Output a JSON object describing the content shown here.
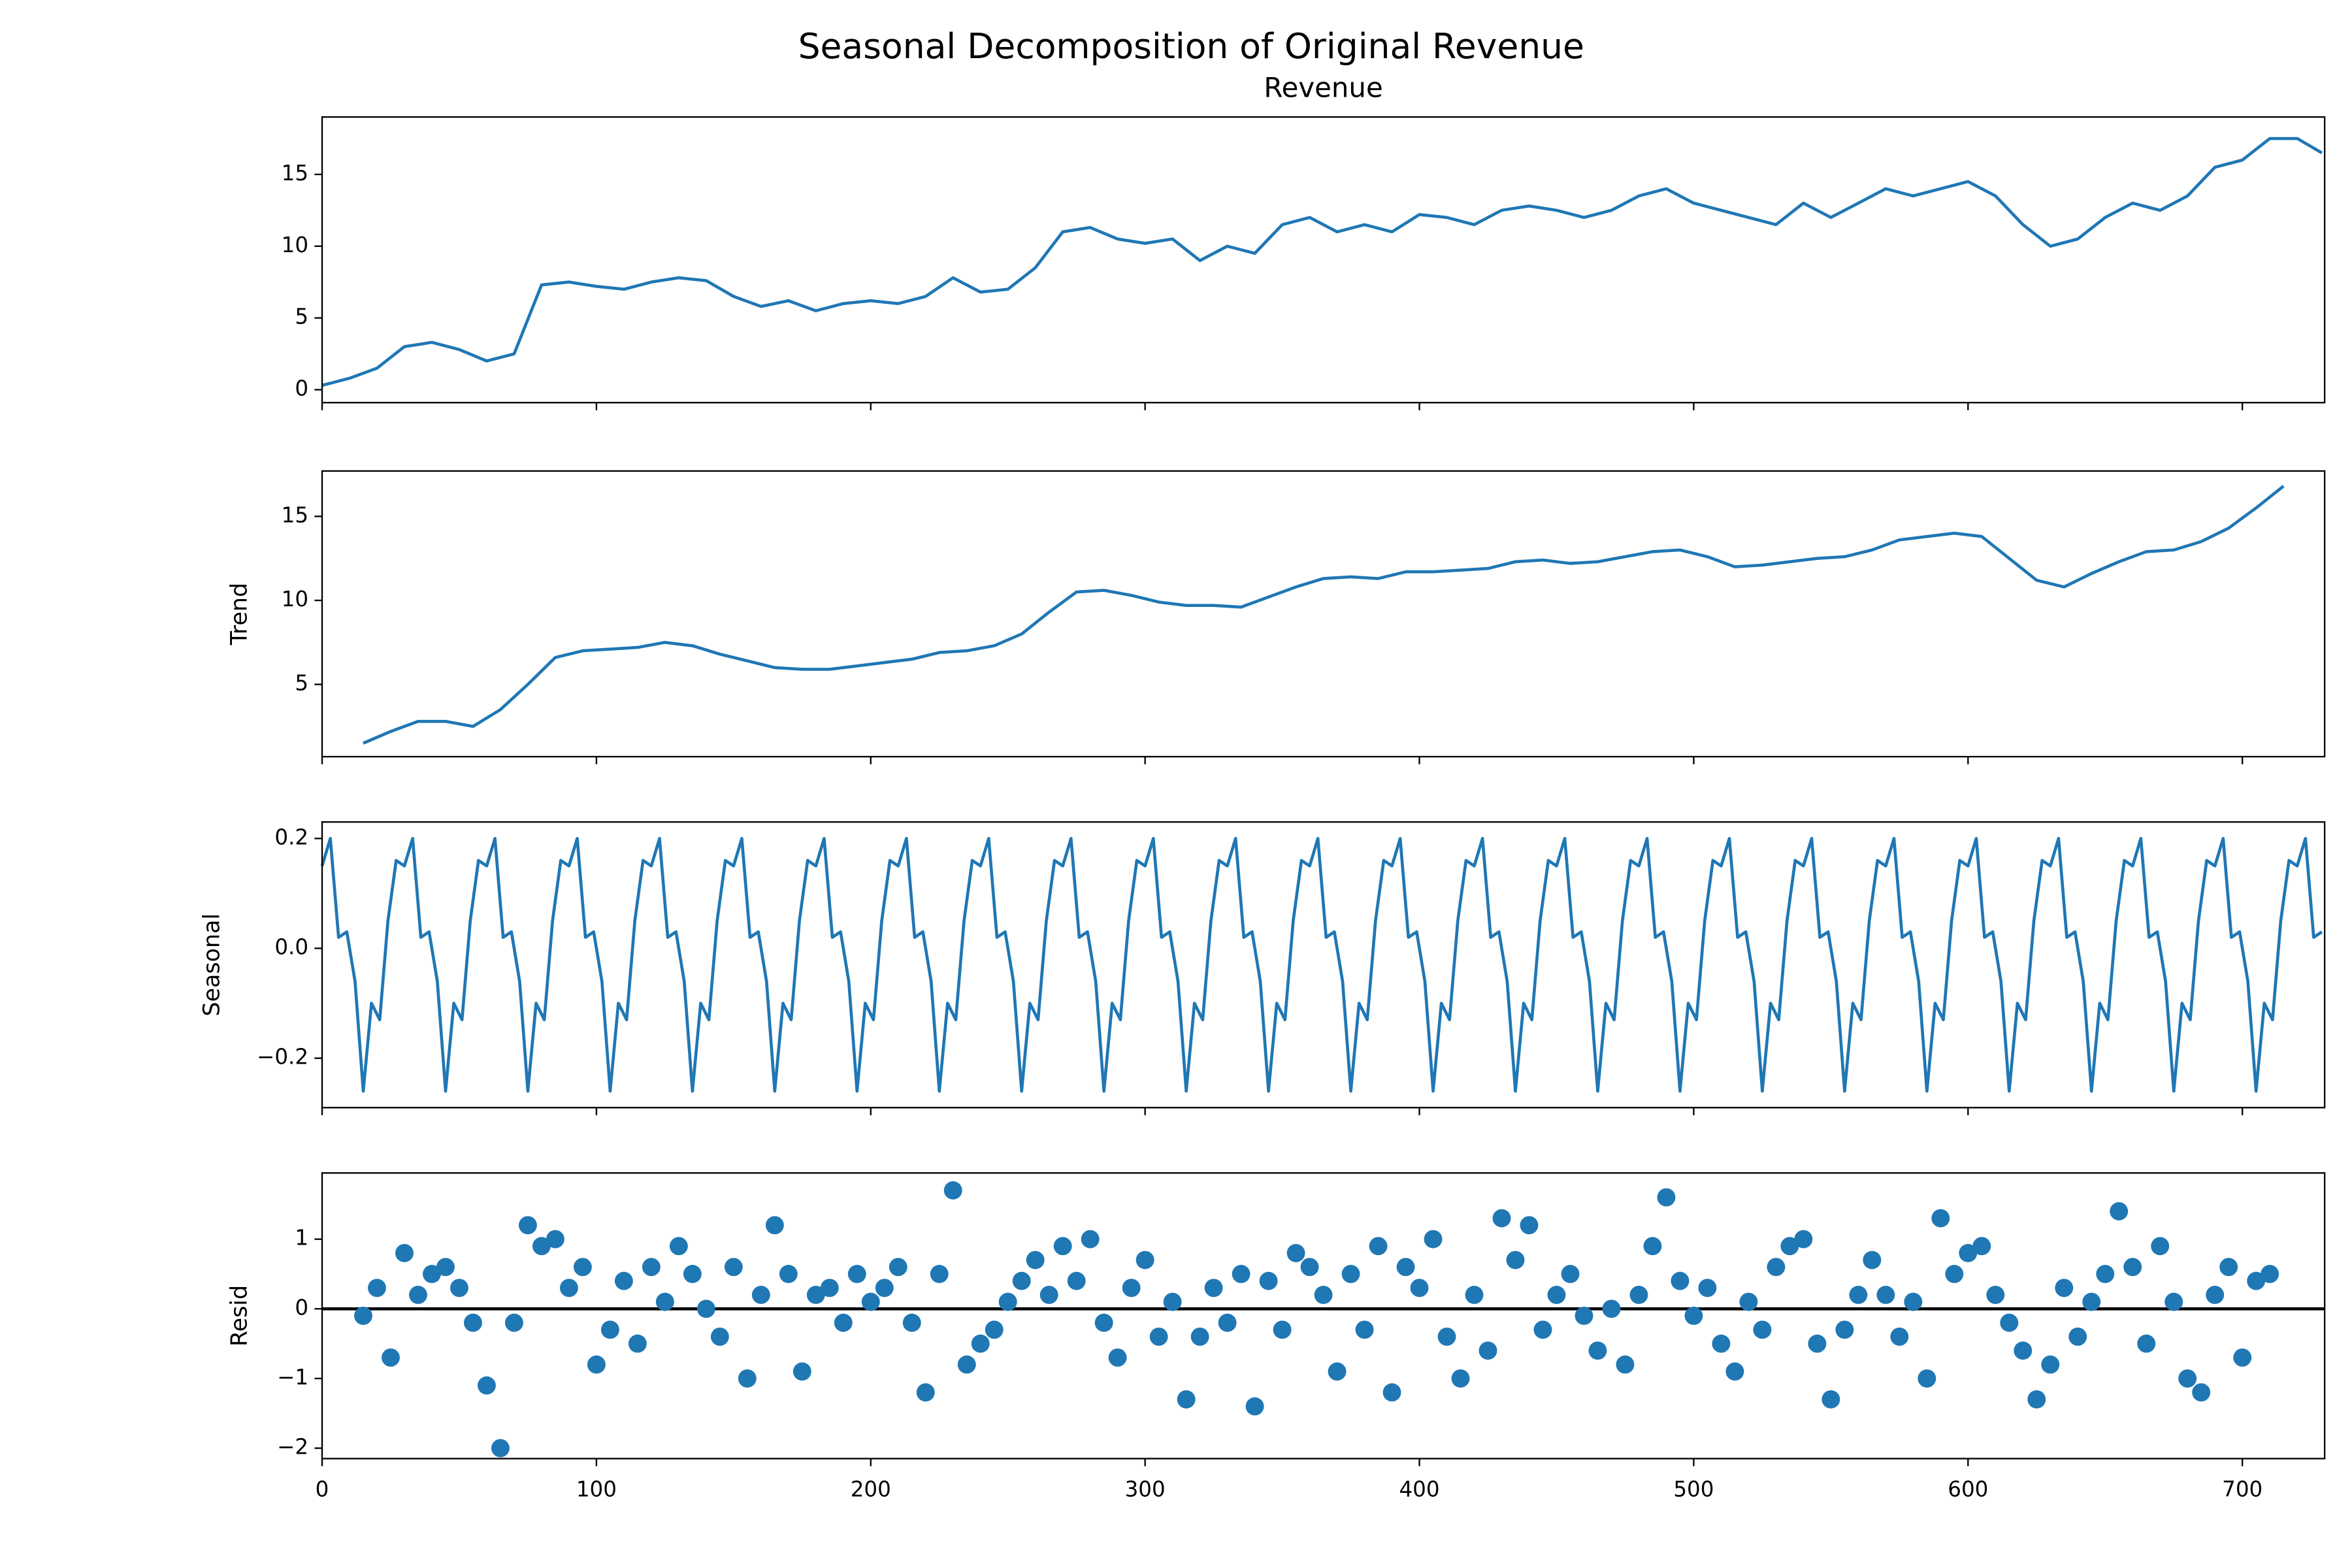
{
  "title": "Seasonal Decomposition of Original Revenue",
  "chart_data": [
    {
      "type": "line",
      "title": "Revenue",
      "color": "#1f77b4",
      "x": [
        0,
        10,
        20,
        30,
        40,
        50,
        60,
        70,
        80,
        90,
        100,
        110,
        120,
        130,
        140,
        150,
        160,
        170,
        180,
        190,
        200,
        210,
        220,
        230,
        240,
        250,
        260,
        270,
        280,
        290,
        300,
        310,
        320,
        330,
        340,
        350,
        360,
        370,
        380,
        390,
        400,
        410,
        420,
        430,
        440,
        450,
        460,
        470,
        480,
        490,
        500,
        510,
        520,
        530,
        540,
        550,
        560,
        570,
        580,
        590,
        600,
        610,
        620,
        630,
        640,
        650,
        660,
        670,
        680,
        690,
        700,
        710,
        720,
        729
      ],
      "values": [
        0.3,
        0.8,
        1.5,
        3.0,
        3.3,
        2.8,
        2.0,
        2.5,
        7.3,
        7.5,
        7.2,
        7.0,
        7.5,
        7.8,
        7.6,
        6.5,
        5.8,
        6.2,
        5.5,
        6.0,
        6.2,
        6.0,
        6.5,
        7.8,
        6.8,
        7.0,
        8.5,
        11.0,
        11.3,
        10.5,
        10.2,
        10.5,
        9.0,
        10.0,
        9.5,
        11.5,
        12.0,
        11.0,
        11.5,
        11.0,
        12.2,
        12.0,
        11.5,
        12.5,
        12.8,
        12.5,
        12.0,
        12.5,
        13.5,
        14.0,
        13.0,
        12.5,
        12.0,
        11.5,
        13.0,
        12.0,
        13.0,
        14.0,
        13.5,
        14.0,
        14.5,
        13.5,
        11.5,
        10.0,
        10.5,
        12.0,
        13.0,
        12.5,
        13.5,
        15.5,
        16.0,
        17.5,
        17.5,
        16.5
      ],
      "ylim": [
        -0.9,
        19.0
      ],
      "yticks": [
        0,
        5,
        10,
        15
      ]
    },
    {
      "type": "line",
      "ylabel": "Trend",
      "color": "#1f77b4",
      "x": [
        15,
        25,
        35,
        45,
        55,
        65,
        75,
        85,
        95,
        105,
        115,
        125,
        135,
        145,
        155,
        165,
        175,
        185,
        195,
        205,
        215,
        225,
        235,
        245,
        255,
        265,
        275,
        285,
        295,
        305,
        315,
        325,
        335,
        345,
        355,
        365,
        375,
        385,
        395,
        405,
        415,
        425,
        435,
        445,
        455,
        465,
        475,
        485,
        495,
        505,
        515,
        525,
        535,
        545,
        555,
        565,
        575,
        585,
        595,
        605,
        615,
        625,
        635,
        645,
        655,
        665,
        675,
        685,
        695,
        705,
        715
      ],
      "values": [
        1.5,
        2.2,
        2.8,
        2.8,
        2.5,
        3.5,
        5.0,
        6.6,
        7.0,
        7.1,
        7.2,
        7.5,
        7.3,
        6.8,
        6.4,
        6.0,
        5.9,
        5.9,
        6.1,
        6.3,
        6.5,
        6.9,
        7.0,
        7.3,
        8.0,
        9.3,
        10.5,
        10.6,
        10.3,
        9.9,
        9.7,
        9.7,
        9.6,
        10.2,
        10.8,
        11.3,
        11.4,
        11.3,
        11.7,
        11.7,
        11.8,
        11.9,
        12.3,
        12.4,
        12.2,
        12.3,
        12.6,
        12.9,
        13.0,
        12.6,
        12.0,
        12.1,
        12.3,
        12.5,
        12.6,
        13.0,
        13.6,
        13.8,
        14.0,
        13.8,
        12.5,
        11.2,
        10.8,
        11.6,
        12.3,
        12.9,
        13.0,
        13.5,
        14.3,
        15.5,
        16.8
      ],
      "ylim": [
        0.7,
        17.7
      ],
      "yticks": [
        5,
        10,
        15
      ]
    },
    {
      "type": "line",
      "ylabel": "Seasonal",
      "color": "#1f77b4",
      "x": [
        0,
        3,
        6,
        9,
        12,
        15,
        18,
        21,
        24,
        27,
        30,
        33,
        36,
        39,
        42,
        45,
        48,
        51,
        54,
        57,
        60,
        63,
        66,
        69,
        72,
        75,
        78,
        81,
        84,
        87,
        90,
        93,
        96,
        99,
        102,
        105,
        108,
        111,
        114,
        117,
        120,
        123,
        126,
        129,
        132,
        135,
        138,
        141,
        144,
        147,
        150,
        153,
        156,
        159,
        162,
        165,
        168,
        171,
        174,
        177,
        180,
        183,
        186,
        189,
        192,
        195,
        198,
        201,
        204,
        207,
        210,
        213,
        216,
        219,
        222,
        225,
        228,
        231,
        234,
        237,
        240,
        243,
        246,
        249,
        252,
        255,
        258,
        261,
        264,
        267,
        270,
        273,
        276,
        279,
        282,
        285,
        288,
        291,
        294,
        297,
        300,
        303,
        306,
        309,
        312,
        315,
        318,
        321,
        324,
        327,
        330,
        333,
        336,
        339,
        342,
        345,
        348,
        351,
        354,
        357,
        360,
        363,
        366,
        369,
        372,
        375,
        378,
        381,
        384,
        387,
        390,
        393,
        396,
        399,
        402,
        405,
        408,
        411,
        414,
        417,
        420,
        423,
        426,
        429,
        432,
        435,
        438,
        441,
        444,
        447,
        450,
        453,
        456,
        459,
        462,
        465,
        468,
        471,
        474,
        477,
        480,
        483,
        486,
        489,
        492,
        495,
        498,
        501,
        504,
        507,
        510,
        513,
        516,
        519,
        522,
        525,
        528,
        531,
        534,
        537,
        540,
        543,
        546,
        549,
        552,
        555,
        558,
        561,
        564,
        567,
        570,
        573,
        576,
        579,
        582,
        585,
        588,
        591,
        594,
        597,
        600,
        603,
        606,
        609,
        612,
        615,
        618,
        621,
        624,
        627,
        630,
        633,
        636,
        639,
        642,
        645,
        648,
        651,
        654,
        657,
        660,
        663,
        666,
        669,
        672,
        675,
        678,
        681,
        684,
        687,
        690,
        693,
        696,
        699,
        702,
        705,
        708,
        711,
        714,
        717,
        720,
        723,
        726,
        729
      ],
      "values": [
        0.15,
        0.2,
        0.02,
        0.03,
        -0.06,
        -0.26,
        -0.1,
        -0.13,
        0.05,
        0.16,
        0.15,
        0.2,
        0.02,
        0.03,
        -0.06,
        -0.26,
        -0.1,
        -0.13,
        0.05,
        0.16,
        0.15,
        0.2,
        0.02,
        0.03,
        -0.06,
        -0.26,
        -0.1,
        -0.13,
        0.05,
        0.16,
        0.15,
        0.2,
        0.02,
        0.03,
        -0.06,
        -0.26,
        -0.1,
        -0.13,
        0.05,
        0.16,
        0.15,
        0.2,
        0.02,
        0.03,
        -0.06,
        -0.26,
        -0.1,
        -0.13,
        0.05,
        0.16,
        0.15,
        0.2,
        0.02,
        0.03,
        -0.06,
        -0.26,
        -0.1,
        -0.13,
        0.05,
        0.16,
        0.15,
        0.2,
        0.02,
        0.03,
        -0.06,
        -0.26,
        -0.1,
        -0.13,
        0.05,
        0.16,
        0.15,
        0.2,
        0.02,
        0.03,
        -0.06,
        -0.26,
        -0.1,
        -0.13,
        0.05,
        0.16,
        0.15,
        0.2,
        0.02,
        0.03,
        -0.06,
        -0.26,
        -0.1,
        -0.13,
        0.05,
        0.16,
        0.15,
        0.2,
        0.02,
        0.03,
        -0.06,
        -0.26,
        -0.1,
        -0.13,
        0.05,
        0.16,
        0.15,
        0.2,
        0.02,
        0.03,
        -0.06,
        -0.26,
        -0.1,
        -0.13,
        0.05,
        0.16,
        0.15,
        0.2,
        0.02,
        0.03,
        -0.06,
        -0.26,
        -0.1,
        -0.13,
        0.05,
        0.16,
        0.15,
        0.2,
        0.02,
        0.03,
        -0.06,
        -0.26,
        -0.1,
        -0.13,
        0.05,
        0.16,
        0.15,
        0.2,
        0.02,
        0.03,
        -0.06,
        -0.26,
        -0.1,
        -0.13,
        0.05,
        0.16,
        0.15,
        0.2,
        0.02,
        0.03,
        -0.06,
        -0.26,
        -0.1,
        -0.13,
        0.05,
        0.16,
        0.15,
        0.2,
        0.02,
        0.03,
        -0.06,
        -0.26,
        -0.1,
        -0.13,
        0.05,
        0.16,
        0.15,
        0.2,
        0.02,
        0.03,
        -0.06,
        -0.26,
        -0.1,
        -0.13,
        0.05,
        0.16,
        0.15,
        0.2,
        0.02,
        0.03,
        -0.06,
        -0.26,
        -0.1,
        -0.13,
        0.05,
        0.16,
        0.15,
        0.2,
        0.02,
        0.03,
        -0.06,
        -0.26,
        -0.1,
        -0.13,
        0.05,
        0.16,
        0.15,
        0.2,
        0.02,
        0.03,
        -0.06,
        -0.26,
        -0.1,
        -0.13,
        0.05,
        0.16,
        0.15,
        0.2,
        0.02,
        0.03,
        -0.06,
        -0.26,
        -0.1,
        -0.13,
        0.05,
        0.16,
        0.15,
        0.2,
        0.02,
        0.03,
        -0.06,
        -0.26,
        -0.1,
        -0.13,
        0.05,
        0.16,
        0.15,
        0.2,
        0.02,
        0.03,
        -0.06,
        -0.26,
        -0.1,
        -0.13,
        0.05,
        0.16,
        0.15,
        0.2,
        0.02,
        0.03,
        -0.06,
        -0.26,
        -0.1,
        -0.13,
        0.05,
        0.16,
        0.15,
        0.2,
        0.02,
        0.03
      ],
      "ylim": [
        -0.29,
        0.23
      ],
      "yticks": [
        {
          "value": -0.2,
          "label": "−0.2"
        },
        {
          "value": 0,
          "label": "0.0"
        },
        {
          "value": 0.2,
          "label": "0.2"
        }
      ]
    },
    {
      "type": "scatter",
      "ylabel": "Resid",
      "color": "#1f77b4",
      "hline": 0,
      "x": [
        15,
        20,
        25,
        30,
        35,
        40,
        45,
        50,
        55,
        60,
        65,
        70,
        75,
        80,
        85,
        90,
        95,
        100,
        105,
        110,
        115,
        120,
        125,
        130,
        135,
        140,
        145,
        150,
        155,
        160,
        165,
        170,
        175,
        180,
        185,
        190,
        195,
        200,
        205,
        210,
        215,
        220,
        225,
        230,
        235,
        240,
        245,
        250,
        255,
        260,
        265,
        270,
        275,
        280,
        285,
        290,
        295,
        300,
        305,
        310,
        315,
        320,
        325,
        330,
        335,
        340,
        345,
        350,
        355,
        360,
        365,
        370,
        375,
        380,
        385,
        390,
        395,
        400,
        405,
        410,
        415,
        420,
        425,
        430,
        435,
        440,
        445,
        450,
        455,
        460,
        465,
        470,
        475,
        480,
        485,
        490,
        495,
        500,
        505,
        510,
        515,
        520,
        525,
        530,
        535,
        540,
        545,
        550,
        555,
        560,
        565,
        570,
        575,
        580,
        585,
        590,
        595,
        600,
        605,
        610,
        615,
        620,
        625,
        630,
        635,
        640,
        645,
        650,
        655,
        660,
        665,
        670,
        675,
        680,
        685,
        690,
        695,
        700,
        705,
        710
      ],
      "values": [
        -0.1,
        0.3,
        -0.7,
        0.8,
        0.2,
        0.5,
        0.6,
        0.3,
        -0.2,
        -1.1,
        -2.0,
        -0.2,
        1.2,
        0.9,
        1.0,
        0.3,
        0.6,
        -0.8,
        -0.3,
        0.4,
        -0.5,
        0.6,
        0.1,
        0.9,
        0.5,
        0.0,
        -0.4,
        0.6,
        -1.0,
        0.2,
        1.2,
        0.5,
        -0.9,
        0.2,
        0.3,
        -0.2,
        0.5,
        0.1,
        0.3,
        0.6,
        -0.2,
        -1.2,
        0.5,
        1.7,
        -0.8,
        -0.5,
        -0.3,
        0.1,
        0.4,
        0.7,
        0.2,
        0.9,
        0.4,
        1.0,
        -0.2,
        -0.7,
        0.3,
        0.7,
        -0.4,
        0.1,
        -1.3,
        -0.4,
        0.3,
        -0.2,
        0.5,
        -1.4,
        0.4,
        -0.3,
        0.8,
        0.6,
        0.2,
        -0.9,
        0.5,
        -0.3,
        0.9,
        -1.2,
        0.6,
        0.3,
        1.0,
        -0.4,
        -1.0,
        0.2,
        -0.6,
        1.3,
        0.7,
        1.2,
        -0.3,
        0.2,
        0.5,
        -0.1,
        -0.6,
        0.0,
        -0.8,
        0.2,
        0.9,
        1.6,
        0.4,
        -0.1,
        0.3,
        -0.5,
        -0.9,
        0.1,
        -0.3,
        0.6,
        0.9,
        1.0,
        -0.5,
        -1.3,
        -0.3,
        0.2,
        0.7,
        0.2,
        -0.4,
        0.1,
        -1.0,
        1.3,
        0.5,
        0.8,
        0.9,
        0.2,
        -0.2,
        -0.6,
        -1.3,
        -0.8,
        0.3,
        -0.4,
        0.1,
        0.5,
        1.4,
        0.6,
        -0.5,
        0.9,
        0.1,
        -1.0,
        -1.2,
        0.2,
        0.6,
        -0.7,
        0.4,
        0.5
      ],
      "ylim": [
        -2.15,
        1.95
      ],
      "yticks": [
        {
          "value": -2,
          "label": "−2"
        },
        {
          "value": -1,
          "label": "−1"
        },
        0,
        1
      ],
      "xlim": [
        0,
        730
      ],
      "xticks": [
        0,
        100,
        200,
        300,
        400,
        500,
        600,
        700
      ]
    }
  ]
}
